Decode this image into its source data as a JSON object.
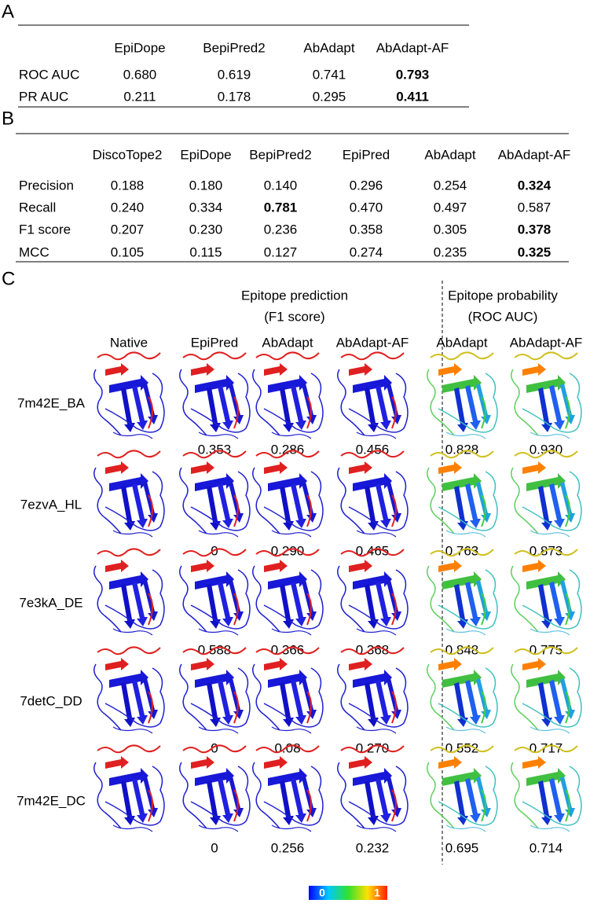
{
  "panel_a": {
    "label": "A",
    "columns": [
      "EpiDope",
      "BepiPred2",
      "AbAdapt",
      "AbAdapt-AF"
    ],
    "rows": [
      {
        "name": "ROC AUC",
        "cells": [
          "0.680",
          "0.619",
          "0.741",
          "0.793"
        ],
        "bold": [
          3
        ]
      },
      {
        "name": "PR AUC",
        "cells": [
          "0.211",
          "0.178",
          "0.295",
          "0.411"
        ],
        "bold": [
          3
        ]
      }
    ]
  },
  "panel_b": {
    "label": "B",
    "columns": [
      "DiscoTope2",
      "EpiDope",
      "BepiPred2",
      "EpiPred",
      "AbAdapt",
      "AbAdapt-AF"
    ],
    "rows": [
      {
        "name": "Precision",
        "cells": [
          "0.188",
          "0.180",
          "0.140",
          "0.296",
          "0.254",
          "0.324"
        ],
        "bold": [
          5
        ]
      },
      {
        "name": "Recall",
        "cells": [
          "0.240",
          "0.334",
          "0.781",
          "0.470",
          "0.497",
          "0.587"
        ],
        "bold": [
          2
        ]
      },
      {
        "name": "F1 score",
        "cells": [
          "0.207",
          "0.230",
          "0.236",
          "0.358",
          "0.305",
          "0.378"
        ],
        "bold": [
          5
        ]
      },
      {
        "name": "MCC",
        "cells": [
          "0.105",
          "0.115",
          "0.127",
          "0.274",
          "0.235",
          "0.325"
        ],
        "bold": [
          5
        ]
      }
    ]
  },
  "panel_c": {
    "label": "C",
    "groups": [
      {
        "title": "Epitope prediction",
        "subtitle": "(F1 score)"
      },
      {
        "title": "Epitope probability",
        "subtitle": "(ROC AUC)"
      }
    ],
    "columns": [
      "Native",
      "EpiPred",
      "AbAdapt",
      "AbAdapt-AF",
      "AbAdapt",
      "AbAdapt-AF"
    ],
    "rows": [
      {
        "name": "7m42E_BA",
        "cells": [
          "0.353",
          "0.286",
          "0.456",
          "0.828",
          "0.930"
        ]
      },
      {
        "name": "7ezvA_HL",
        "cells": [
          "0",
          "0.290",
          "0.465",
          "0.763",
          "0.873"
        ]
      },
      {
        "name": "7e3kA_DE",
        "cells": [
          "0.588",
          "0.366",
          "0.368",
          "0.848",
          "0.775"
        ]
      },
      {
        "name": "7detC_DD",
        "cells": [
          "0",
          "0.08",
          "0.270",
          "0.552",
          "0.717"
        ]
      },
      {
        "name": "7m42E_DC",
        "cells": [
          "0",
          "0.256",
          "0.232",
          "0.695",
          "0.714"
        ]
      }
    ],
    "colorbar": {
      "min_label": "0",
      "max_label": "1"
    }
  }
}
